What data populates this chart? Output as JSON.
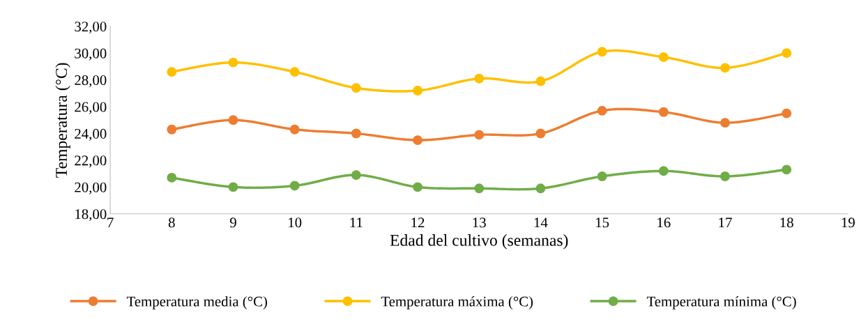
{
  "chart_data": {
    "type": "line",
    "xlabel": "Edad del cultivo (semanas)",
    "ylabel": "Temperatura (°C)",
    "x": [
      8,
      9,
      10,
      11,
      12,
      13,
      14,
      15,
      16,
      17,
      18
    ],
    "series": [
      {
        "name": "Temperatura media (°C)",
        "color": "#ed7d31",
        "values": [
          24.3,
          25.0,
          24.3,
          24.0,
          23.5,
          23.9,
          24.0,
          25.7,
          25.6,
          24.8,
          25.5
        ]
      },
      {
        "name": "Temperatura máxima (°C)",
        "color": "#ffc000",
        "values": [
          28.6,
          29.3,
          28.6,
          27.4,
          27.2,
          28.1,
          27.9,
          30.1,
          29.7,
          28.9,
          30.0
        ]
      },
      {
        "name": "Temperatura mínima (°C)",
        "color": "#70ad47",
        "values": [
          20.7,
          20.0,
          20.1,
          20.9,
          20.0,
          19.9,
          19.9,
          20.8,
          21.2,
          20.8,
          21.3
        ]
      }
    ],
    "xlim": [
      7,
      19
    ],
    "xticks": [
      7,
      8,
      9,
      10,
      11,
      12,
      13,
      14,
      15,
      16,
      17,
      18,
      19
    ],
    "ylim": [
      18,
      32
    ],
    "yticks": [
      {
        "value": 18,
        "label": "18,00"
      },
      {
        "value": 20,
        "label": "20,00"
      },
      {
        "value": 22,
        "label": "22,00"
      },
      {
        "value": 24,
        "label": "24,00"
      },
      {
        "value": 26,
        "label": "26,00"
      },
      {
        "value": 28,
        "label": "28,00"
      },
      {
        "value": 30,
        "label": "30,00"
      },
      {
        "value": 32,
        "label": "32,00"
      }
    ],
    "grid": false,
    "legend": "bottom",
    "marker": "circle",
    "line_style": "solid"
  }
}
